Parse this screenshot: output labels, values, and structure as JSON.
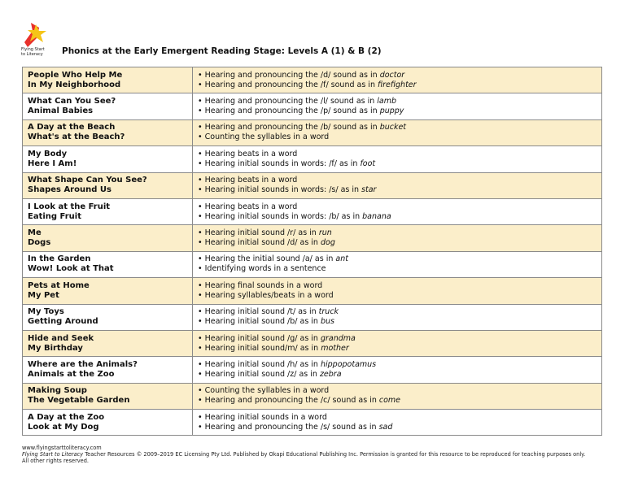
{
  "logo": {
    "text": "Flying Start to Literacy"
  },
  "title": "Phonics at the Early Emergent Reading Stage: Levels A (1) & B (2)",
  "rows": [
    {
      "titles": [
        "People Who Help Me",
        "In My Neighborhood"
      ],
      "skills": [
        {
          "text": "• Hearing and pronouncing the /d/ sound as in ",
          "em": "doctor"
        },
        {
          "text": "• Hearing and pronouncing the /f/ sound as in ",
          "em": "firefighter"
        }
      ]
    },
    {
      "titles": [
        "What Can You See?",
        "Animal Babies"
      ],
      "skills": [
        {
          "text": "• Hearing and pronouncing the /l/ sound as in ",
          "em": "lamb"
        },
        {
          "text": "• Hearing and pronouncing the /p/ sound as in ",
          "em": "puppy"
        }
      ]
    },
    {
      "titles": [
        "A Day at the Beach",
        "What's at the Beach?"
      ],
      "skills": [
        {
          "text": "• Hearing and pronouncing the /b/ sound as in ",
          "em": "bucket"
        },
        {
          "text": "• Counting the syllables in a word",
          "em": ""
        }
      ]
    },
    {
      "titles": [
        "My Body",
        "Here I Am!"
      ],
      "skills": [
        {
          "text": "• Hearing beats in a word",
          "em": ""
        },
        {
          "text": "• Hearing initial sounds in words: /f/ as in ",
          "em": "foot"
        }
      ]
    },
    {
      "titles": [
        "What Shape Can You See?",
        "Shapes Around Us"
      ],
      "skills": [
        {
          "text": "• Hearing beats in a word",
          "em": ""
        },
        {
          "text": "• Hearing initial sounds in words: /s/ as in ",
          "em": "star"
        }
      ]
    },
    {
      "titles": [
        "I Look at the Fruit",
        "Eating Fruit"
      ],
      "skills": [
        {
          "text": "• Hearing beats in a word",
          "em": ""
        },
        {
          "text": "• Hearing initial sounds in words: /b/ as in ",
          "em": "banana"
        }
      ]
    },
    {
      "titles": [
        "Me",
        "Dogs"
      ],
      "skills": [
        {
          "text": "• Hearing initial sound /r/ as in ",
          "em": "run"
        },
        {
          "text": "• Hearing initial sound /d/ as in ",
          "em": "dog"
        }
      ]
    },
    {
      "titles": [
        "In the Garden",
        "Wow! Look at That"
      ],
      "skills": [
        {
          "text": "• Hearing the initial sound /a/ as in ",
          "em": "ant"
        },
        {
          "text": "• Identifying words in a sentence",
          "em": ""
        }
      ]
    },
    {
      "titles": [
        "Pets at Home",
        "My Pet"
      ],
      "skills": [
        {
          "text": "• Hearing final sounds in a word",
          "em": ""
        },
        {
          "text": "• Hearing syllables/beats in a word",
          "em": ""
        }
      ]
    },
    {
      "titles": [
        "My Toys",
        "Getting Around"
      ],
      "skills": [
        {
          "text": "• Hearing initial sound /t/ as in ",
          "em": "truck"
        },
        {
          "text": "• Hearing initial sound /b/ as in ",
          "em": "bus"
        }
      ]
    },
    {
      "titles": [
        "Hide and Seek",
        "My Birthday"
      ],
      "skills": [
        {
          "text": "• Hearing initial sound /g/ as in ",
          "em": "grandma"
        },
        {
          "text": "• Hearing initial sound/m/ as in ",
          "em": "mother"
        }
      ]
    },
    {
      "titles": [
        "Where are the Animals?",
        "Animals at the Zoo"
      ],
      "skills": [
        {
          "text": "• Hearing initial sound /h/ as in ",
          "em": "hippopotamus"
        },
        {
          "text": "• Hearing initial sound /z/ as in ",
          "em": "zebra"
        }
      ]
    },
    {
      "titles": [
        "Making Soup",
        "The Vegetable Garden"
      ],
      "skills": [
        {
          "text": "• Counting the syllables in a word",
          "em": ""
        },
        {
          "text": "• Hearing and pronouncing the /c/ sound as in ",
          "em": "come"
        }
      ]
    },
    {
      "titles": [
        "A Day at the Zoo",
        "Look at My Dog"
      ],
      "skills": [
        {
          "text": "• Hearing initial sounds in a word",
          "em": ""
        },
        {
          "text": "• Hearing and pronouncing the /s/ sound as in ",
          "em": "sad"
        }
      ]
    }
  ],
  "footer": {
    "url": "www.flyingstarttoliteracy.com",
    "brand": "Flying Start to Literacy",
    "copyright": " Teacher Resources © 2009–2019 EC Licensing Pty Ltd. Published by Okapi Educational Publishing Inc. Permission is granted for this resource to be reproduced for teaching purposes only.",
    "rights": "All other rights reserved."
  },
  "colors": {
    "shaded_row": "#fbeeca",
    "border": "#8a8a8a"
  }
}
